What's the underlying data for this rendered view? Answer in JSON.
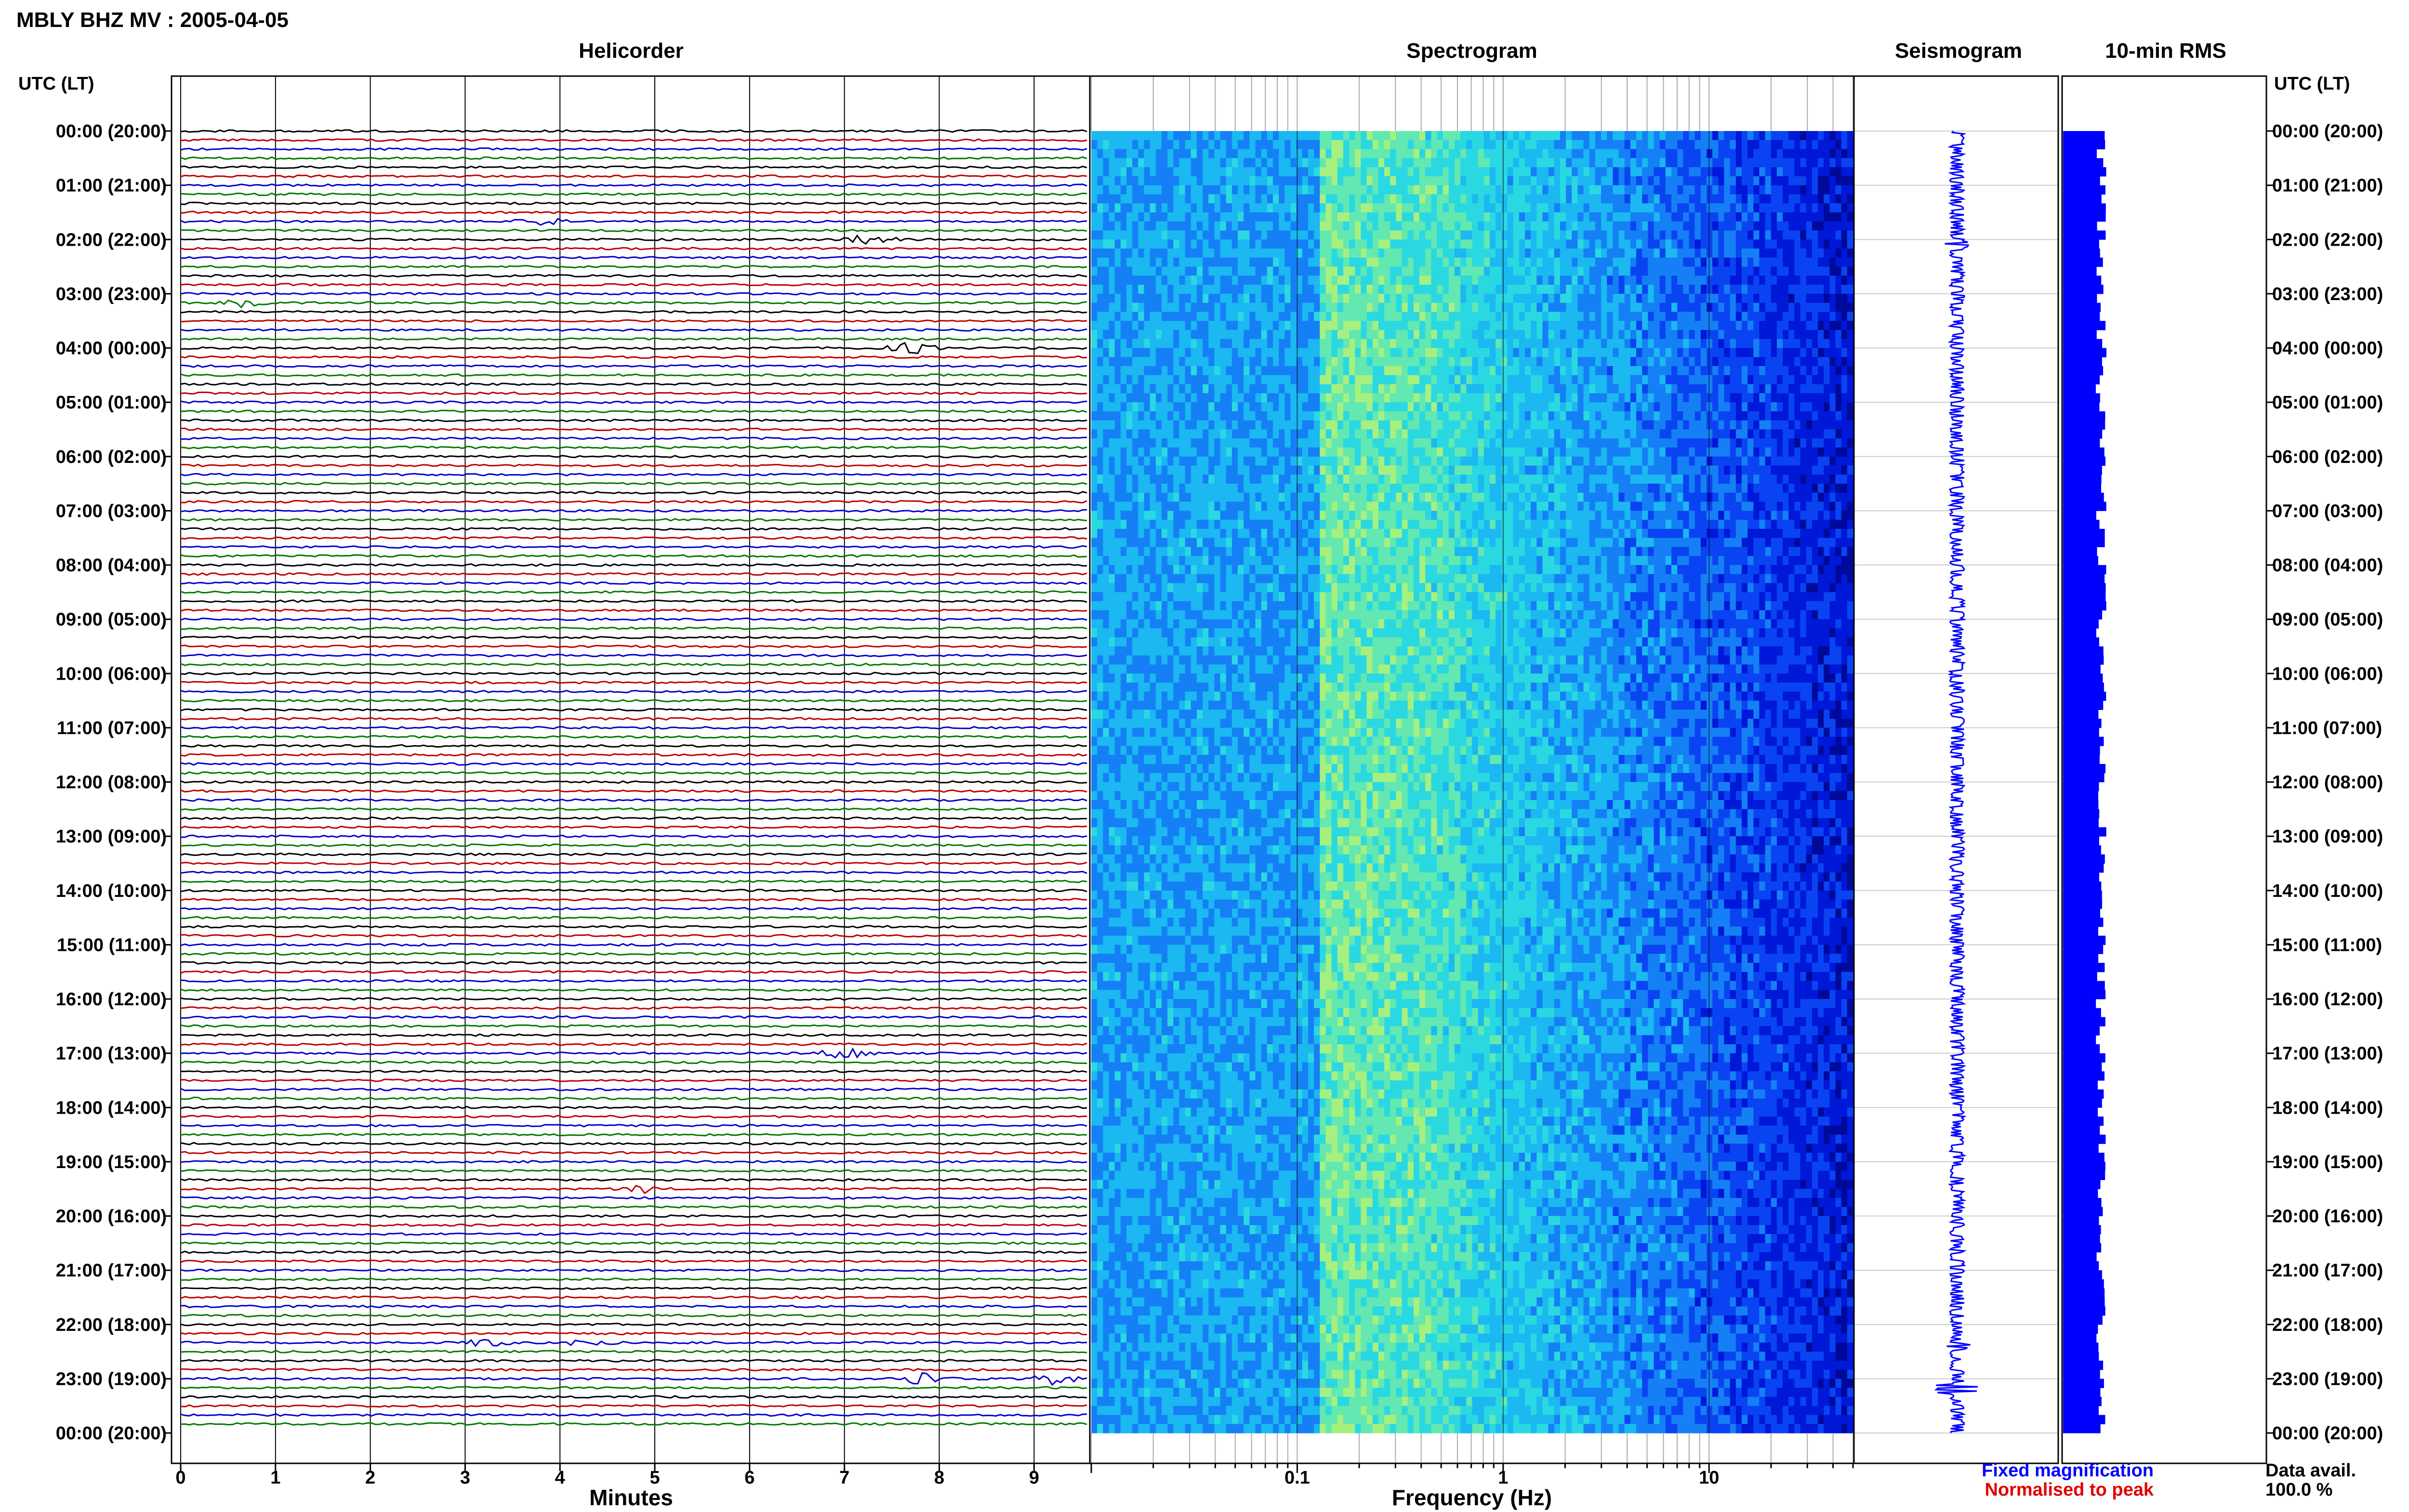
{
  "figure_title": "MBLY BHZ MV : 2005-04-05",
  "chart_data": [
    {
      "type": "line",
      "panel": "helicorder",
      "title": "Helicorder",
      "xlabel": "Minutes",
      "ylabel_left": "UTC (LT)",
      "ylabel_right": "UTC (LT)",
      "xlim": [
        0,
        10
      ],
      "x_ticks": [
        0,
        1,
        2,
        3,
        4,
        5,
        6,
        7,
        8,
        9
      ],
      "rows_per_hour": 6,
      "hours": 24,
      "row_colors": [
        "#000000",
        "#c00000",
        "#0000cc",
        "#007a00"
      ],
      "time_labels": [
        "00:00 (20:00)",
        "01:00 (21:00)",
        "02:00 (22:00)",
        "03:00 (23:00)",
        "04:00 (00:00)",
        "05:00 (01:00)",
        "06:00 (02:00)",
        "07:00 (03:00)",
        "08:00 (04:00)",
        "09:00 (05:00)",
        "10:00 (06:00)",
        "11:00 (07:00)",
        "12:00 (08:00)",
        "13:00 (09:00)",
        "14:00 (10:00)",
        "15:00 (11:00)",
        "16:00 (12:00)",
        "17:00 (13:00)",
        "18:00 (14:00)",
        "19:00 (15:00)",
        "20:00 (16:00)",
        "21:00 (17:00)",
        "22:00 (18:00)",
        "23:00 (19:00)",
        "00:00 (20:00)"
      ],
      "events": [
        {
          "hour": 2,
          "row": 0,
          "minute": 7.3,
          "amplitude": 2.2
        },
        {
          "hour": 4,
          "row": 0,
          "minute": 7.7,
          "amplitude": 2.0
        },
        {
          "hour": 3,
          "row": 1,
          "minute": 0.7,
          "amplitude": 1.5
        },
        {
          "hour": 17,
          "row": 0,
          "minute": 7.0,
          "amplitude": 1.8
        },
        {
          "hour": 23,
          "row": 0,
          "minute": 7.8,
          "amplitude": 2.6
        },
        {
          "hour": 23,
          "row": 0,
          "minute": 9.2,
          "amplitude": 1.8
        },
        {
          "hour": 22,
          "row": 2,
          "minute": 3.2,
          "amplitude": 1.4
        },
        {
          "hour": 22,
          "row": 2,
          "minute": 4.3,
          "amplitude": 1.2
        },
        {
          "hour": 19,
          "row": 3,
          "minute": 4.9,
          "amplitude": 1.3
        },
        {
          "hour": 1,
          "row": 4,
          "minute": 3.8,
          "amplitude": 1.2
        }
      ]
    },
    {
      "type": "heatmap",
      "panel": "spectrogram",
      "title": "Spectrogram",
      "xlabel": "Frequency (Hz)",
      "x_scale": "log",
      "xlim": [
        0.01,
        50
      ],
      "x_ticks": [
        0.1,
        1,
        10
      ],
      "x_tick_labels": [
        "0.1",
        "1",
        "10"
      ],
      "colormap": [
        "#000a9a",
        "#0018d8",
        "#0a44f2",
        "#1580f5",
        "#1bb8f2",
        "#2ad8e2",
        "#62e8b0",
        "#a6f080"
      ]
    },
    {
      "type": "line",
      "panel": "seismogram",
      "title": "Seismogram",
      "color": "#0000ff"
    },
    {
      "type": "bar",
      "panel": "rms",
      "title": "10-min RMS",
      "color": "#0000ff",
      "orientation": "horizontal"
    }
  ],
  "legend": {
    "fixed": {
      "label": "Fixed magnification",
      "color": "#0000ff"
    },
    "normalised": {
      "label": "Normalised to peak",
      "color": "#e00000"
    }
  },
  "data_avail": {
    "label": "Data avail.",
    "value": "100.0 %"
  }
}
